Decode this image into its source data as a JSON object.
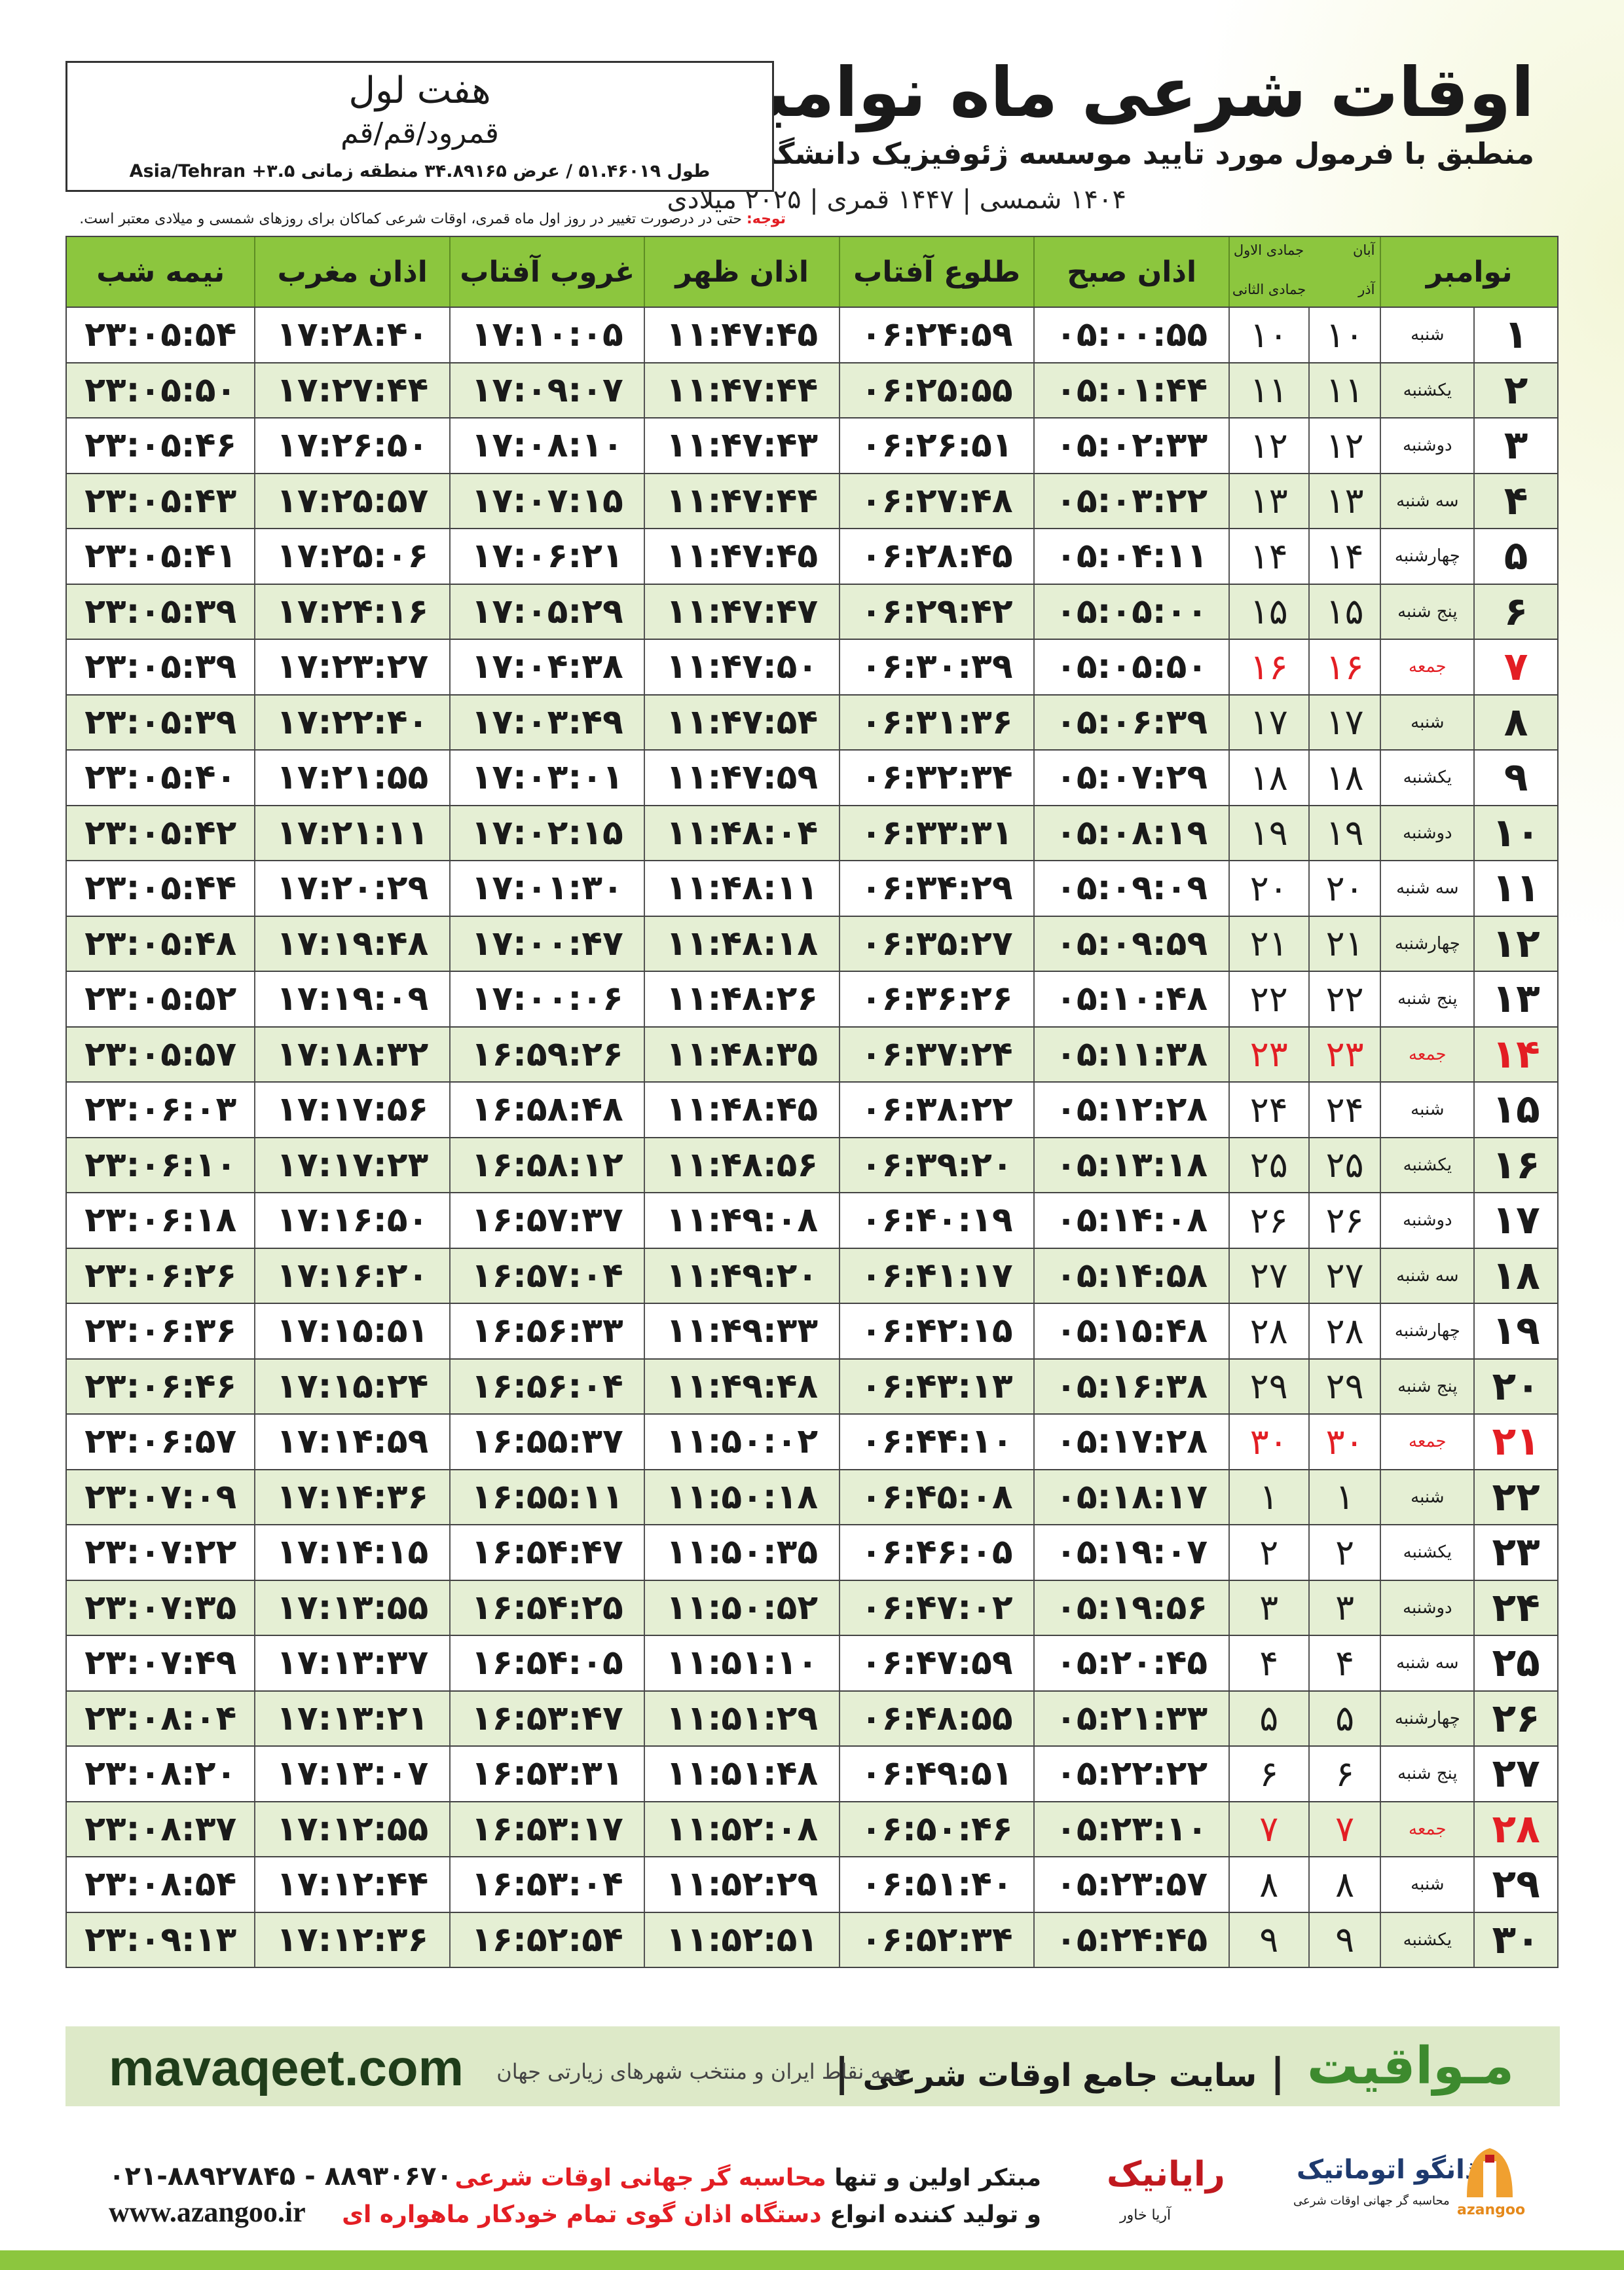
{
  "header": {
    "title": "اوقات شرعی ماه نوامبر",
    "subtitle": "منطبق با فرمول مورد تایید موسسه ژئوفیزیک دانشگاه تهران",
    "dates": "۱۴۰۴ شمسی | ۱۴۴۷ قمری | ۲۰۲۵ میلادی"
  },
  "location": {
    "name": "هفت لول",
    "region": "قمرود/قم/قم",
    "coordinates": "طول ۵۱.۴۶۰۱۹ / عرض ۳۴.۸۹۱۶۵ منطقه زمانی ۳.۵+ Asia/Tehran"
  },
  "note": {
    "label": "توجه:",
    "text": "حتی در درصورت تغییر در روز اول ماه قمری، اوقات شرعی کماکان برای روزهای شمسی و میلادی معتبر است."
  },
  "table": {
    "header": {
      "day": "نوامبر",
      "shamsi_months": [
        "آبان",
        "آذر"
      ],
      "hijri_months": [
        "جمادی الاول",
        "جمادی الثانی"
      ],
      "times": [
        "اذان صبح",
        "طلوع آفتاب",
        "اذان ظهر",
        "غروب آفتاب",
        "اذان مغرب",
        "نیمه شب"
      ]
    },
    "rows": [
      [
        "۱",
        "شنبه",
        "۱۰",
        "۱۰",
        "۰۵:۰۰:۵۵",
        "۰۶:۲۴:۵۹",
        "۱۱:۴۷:۴۵",
        "۱۷:۱۰:۰۵",
        "۱۷:۲۸:۴۰",
        "۲۳:۰۵:۵۴"
      ],
      [
        "۲",
        "یکشنبه",
        "۱۱",
        "۱۱",
        "۰۵:۰۱:۴۴",
        "۰۶:۲۵:۵۵",
        "۱۱:۴۷:۴۴",
        "۱۷:۰۹:۰۷",
        "۱۷:۲۷:۴۴",
        "۲۳:۰۵:۵۰"
      ],
      [
        "۳",
        "دوشنبه",
        "۱۲",
        "۱۲",
        "۰۵:۰۲:۳۳",
        "۰۶:۲۶:۵۱",
        "۱۱:۴۷:۴۳",
        "۱۷:۰۸:۱۰",
        "۱۷:۲۶:۵۰",
        "۲۳:۰۵:۴۶"
      ],
      [
        "۴",
        "سه شنبه",
        "۱۳",
        "۱۳",
        "۰۵:۰۳:۲۲",
        "۰۶:۲۷:۴۸",
        "۱۱:۴۷:۴۴",
        "۱۷:۰۷:۱۵",
        "۱۷:۲۵:۵۷",
        "۲۳:۰۵:۴۳"
      ],
      [
        "۵",
        "چهارشنبه",
        "۱۴",
        "۱۴",
        "۰۵:۰۴:۱۱",
        "۰۶:۲۸:۴۵",
        "۱۱:۴۷:۴۵",
        "۱۷:۰۶:۲۱",
        "۱۷:۲۵:۰۶",
        "۲۳:۰۵:۴۱"
      ],
      [
        "۶",
        "پنج شنبه",
        "۱۵",
        "۱۵",
        "۰۵:۰۵:۰۰",
        "۰۶:۲۹:۴۲",
        "۱۱:۴۷:۴۷",
        "۱۷:۰۵:۲۹",
        "۱۷:۲۴:۱۶",
        "۲۳:۰۵:۳۹"
      ],
      [
        "۷",
        "جمعه",
        "۱۶",
        "۱۶",
        "۰۵:۰۵:۵۰",
        "۰۶:۳۰:۳۹",
        "۱۱:۴۷:۵۰",
        "۱۷:۰۴:۳۸",
        "۱۷:۲۳:۲۷",
        "۲۳:۰۵:۳۹"
      ],
      [
        "۸",
        "شنبه",
        "۱۷",
        "۱۷",
        "۰۵:۰۶:۳۹",
        "۰۶:۳۱:۳۶",
        "۱۱:۴۷:۵۴",
        "۱۷:۰۳:۴۹",
        "۱۷:۲۲:۴۰",
        "۲۳:۰۵:۳۹"
      ],
      [
        "۹",
        "یکشنبه",
        "۱۸",
        "۱۸",
        "۰۵:۰۷:۲۹",
        "۰۶:۳۲:۳۴",
        "۱۱:۴۷:۵۹",
        "۱۷:۰۳:۰۱",
        "۱۷:۲۱:۵۵",
        "۲۳:۰۵:۴۰"
      ],
      [
        "۱۰",
        "دوشنبه",
        "۱۹",
        "۱۹",
        "۰۵:۰۸:۱۹",
        "۰۶:۳۳:۳۱",
        "۱۱:۴۸:۰۴",
        "۱۷:۰۲:۱۵",
        "۱۷:۲۱:۱۱",
        "۲۳:۰۵:۴۲"
      ],
      [
        "۱۱",
        "سه شنبه",
        "۲۰",
        "۲۰",
        "۰۵:۰۹:۰۹",
        "۰۶:۳۴:۲۹",
        "۱۱:۴۸:۱۱",
        "۱۷:۰۱:۳۰",
        "۱۷:۲۰:۲۹",
        "۲۳:۰۵:۴۴"
      ],
      [
        "۱۲",
        "چهارشنبه",
        "۲۱",
        "۲۱",
        "۰۵:۰۹:۵۹",
        "۰۶:۳۵:۲۷",
        "۱۱:۴۸:۱۸",
        "۱۷:۰۰:۴۷",
        "۱۷:۱۹:۴۸",
        "۲۳:۰۵:۴۸"
      ],
      [
        "۱۳",
        "پنج شنبه",
        "۲۲",
        "۲۲",
        "۰۵:۱۰:۴۸",
        "۰۶:۳۶:۲۶",
        "۱۱:۴۸:۲۶",
        "۱۷:۰۰:۰۶",
        "۱۷:۱۹:۰۹",
        "۲۳:۰۵:۵۲"
      ],
      [
        "۱۴",
        "جمعه",
        "۲۳",
        "۲۳",
        "۰۵:۱۱:۳۸",
        "۰۶:۳۷:۲۴",
        "۱۱:۴۸:۳۵",
        "۱۶:۵۹:۲۶",
        "۱۷:۱۸:۳۲",
        "۲۳:۰۵:۵۷"
      ],
      [
        "۱۵",
        "شنبه",
        "۲۴",
        "۲۴",
        "۰۵:۱۲:۲۸",
        "۰۶:۳۸:۲۲",
        "۱۱:۴۸:۴۵",
        "۱۶:۵۸:۴۸",
        "۱۷:۱۷:۵۶",
        "۲۳:۰۶:۰۳"
      ],
      [
        "۱۶",
        "یکشنبه",
        "۲۵",
        "۲۵",
        "۰۵:۱۳:۱۸",
        "۰۶:۳۹:۲۰",
        "۱۱:۴۸:۵۶",
        "۱۶:۵۸:۱۲",
        "۱۷:۱۷:۲۳",
        "۲۳:۰۶:۱۰"
      ],
      [
        "۱۷",
        "دوشنبه",
        "۲۶",
        "۲۶",
        "۰۵:۱۴:۰۸",
        "۰۶:۴۰:۱۹",
        "۱۱:۴۹:۰۸",
        "۱۶:۵۷:۳۷",
        "۱۷:۱۶:۵۰",
        "۲۳:۰۶:۱۸"
      ],
      [
        "۱۸",
        "سه شنبه",
        "۲۷",
        "۲۷",
        "۰۵:۱۴:۵۸",
        "۰۶:۴۱:۱۷",
        "۱۱:۴۹:۲۰",
        "۱۶:۵۷:۰۴",
        "۱۷:۱۶:۲۰",
        "۲۳:۰۶:۲۶"
      ],
      [
        "۱۹",
        "چهارشنبه",
        "۲۸",
        "۲۸",
        "۰۵:۱۵:۴۸",
        "۰۶:۴۲:۱۵",
        "۱۱:۴۹:۳۳",
        "۱۶:۵۶:۳۳",
        "۱۷:۱۵:۵۱",
        "۲۳:۰۶:۳۶"
      ],
      [
        "۲۰",
        "پنج شنبه",
        "۲۹",
        "۲۹",
        "۰۵:۱۶:۳۸",
        "۰۶:۴۳:۱۳",
        "۱۱:۴۹:۴۸",
        "۱۶:۵۶:۰۴",
        "۱۷:۱۵:۲۴",
        "۲۳:۰۶:۴۶"
      ],
      [
        "۲۱",
        "جمعه",
        "۳۰",
        "۳۰",
        "۰۵:۱۷:۲۸",
        "۰۶:۴۴:۱۰",
        "۱۱:۵۰:۰۲",
        "۱۶:۵۵:۳۷",
        "۱۷:۱۴:۵۹",
        "۲۳:۰۶:۵۷"
      ],
      [
        "۲۲",
        "شنبه",
        "۱",
        "۱",
        "۰۵:۱۸:۱۷",
        "۰۶:۴۵:۰۸",
        "۱۱:۵۰:۱۸",
        "۱۶:۵۵:۱۱",
        "۱۷:۱۴:۳۶",
        "۲۳:۰۷:۰۹"
      ],
      [
        "۲۳",
        "یکشنبه",
        "۲",
        "۲",
        "۰۵:۱۹:۰۷",
        "۰۶:۴۶:۰۵",
        "۱۱:۵۰:۳۵",
        "۱۶:۵۴:۴۷",
        "۱۷:۱۴:۱۵",
        "۲۳:۰۷:۲۲"
      ],
      [
        "۲۴",
        "دوشنبه",
        "۳",
        "۳",
        "۰۵:۱۹:۵۶",
        "۰۶:۴۷:۰۲",
        "۱۱:۵۰:۵۲",
        "۱۶:۵۴:۲۵",
        "۱۷:۱۳:۵۵",
        "۲۳:۰۷:۳۵"
      ],
      [
        "۲۵",
        "سه شنبه",
        "۴",
        "۴",
        "۰۵:۲۰:۴۵",
        "۰۶:۴۷:۵۹",
        "۱۱:۵۱:۱۰",
        "۱۶:۵۴:۰۵",
        "۱۷:۱۳:۳۷",
        "۲۳:۰۷:۴۹"
      ],
      [
        "۲۶",
        "چهارشنبه",
        "۵",
        "۵",
        "۰۵:۲۱:۳۳",
        "۰۶:۴۸:۵۵",
        "۱۱:۵۱:۲۹",
        "۱۶:۵۳:۴۷",
        "۱۷:۱۳:۲۱",
        "۲۳:۰۸:۰۴"
      ],
      [
        "۲۷",
        "پنج شنبه",
        "۶",
        "۶",
        "۰۵:۲۲:۲۲",
        "۰۶:۴۹:۵۱",
        "۱۱:۵۱:۴۸",
        "۱۶:۵۳:۳۱",
        "۱۷:۱۳:۰۷",
        "۲۳:۰۸:۲۰"
      ],
      [
        "۲۸",
        "جمعه",
        "۷",
        "۷",
        "۰۵:۲۳:۱۰",
        "۰۶:۵۰:۴۶",
        "۱۱:۵۲:۰۸",
        "۱۶:۵۳:۱۷",
        "۱۷:۱۲:۵۵",
        "۲۳:۰۸:۳۷"
      ],
      [
        "۲۹",
        "شنبه",
        "۸",
        "۸",
        "۰۵:۲۳:۵۷",
        "۰۶:۵۱:۴۰",
        "۱۱:۵۲:۲۹",
        "۱۶:۵۳:۰۴",
        "۱۷:۱۲:۴۴",
        "۲۳:۰۸:۵۴"
      ],
      [
        "۳۰",
        "یکشنبه",
        "۹",
        "۹",
        "۰۵:۲۴:۴۵",
        "۰۶:۵۲:۳۴",
        "۱۱:۵۲:۵۱",
        "۱۶:۵۲:۵۴",
        "۱۷:۱۲:۳۶",
        "۲۳:۰۹:۱۳"
      ]
    ]
  },
  "footer": {
    "brand": "مـواقیت",
    "brand_tagline": "سایت جامع اوقات شرعی",
    "brand_sub": "همه نقاط ایران و منتخب شهرهای زیارتی جهان",
    "website": "mavaqeet.com",
    "phone": "۰۲۱-۸۸۹۲۷۸۴۵ - ۸۸۹۳۰۶۷۰",
    "url": "www.azangoo.ir",
    "line1_a": "مبتکر اولین و تنها",
    "line1_b": "محاسبه گر جهانی اوقات شرعی",
    "line2_a": "و تولید کننده انواع",
    "line2_b": "دستگاه اذان گوی تمام خودکار ماهواره ای",
    "raynik": "رایانیک",
    "raynik_sub": "آریا خاور",
    "azangoo_fa": "اذانگو اتوماتیک",
    "azangoo_sub": "محاسبه گر جهانی اوقات شرعی",
    "azangoo_en": "azangoo"
  }
}
